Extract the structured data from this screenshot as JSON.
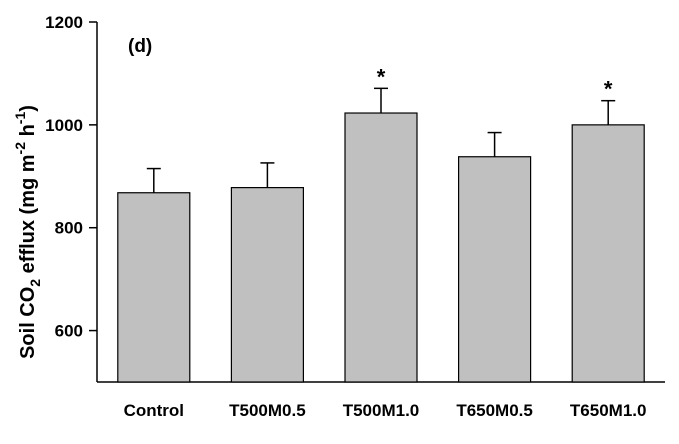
{
  "chart_data": {
    "type": "bar",
    "panel_label": "(d)",
    "title": "",
    "xlabel": "",
    "ylabel_parts": {
      "soil": "Soil CO",
      "co2_sub": "2",
      "efflux": " efflux (mg m",
      "m_sup": "-2",
      "h": " h",
      "h_sup": "-1",
      "close": ")"
    },
    "ylim": [
      500,
      1200
    ],
    "yticks": [
      600,
      800,
      1000,
      1200
    ],
    "categories": [
      "Control",
      "T500M0.5",
      "T500M1.0",
      "T650M0.5",
      "T650M1.0"
    ],
    "values": [
      868,
      878,
      1023,
      938,
      1000
    ],
    "errors": [
      47,
      48,
      48,
      47,
      47
    ],
    "significance": [
      "",
      "",
      "*",
      "",
      "*"
    ],
    "bar_color": "#c0c0c0",
    "grid": false,
    "legend": "none"
  }
}
